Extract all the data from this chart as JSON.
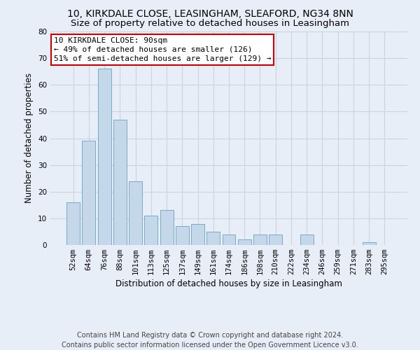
{
  "title": "10, KIRKDALE CLOSE, LEASINGHAM, SLEAFORD, NG34 8NN",
  "subtitle": "Size of property relative to detached houses in Leasingham",
  "xlabel": "Distribution of detached houses by size in Leasingham",
  "ylabel": "Number of detached properties",
  "categories": [
    "52sqm",
    "64sqm",
    "76sqm",
    "88sqm",
    "101sqm",
    "113sqm",
    "125sqm",
    "137sqm",
    "149sqm",
    "161sqm",
    "174sqm",
    "186sqm",
    "198sqm",
    "210sqm",
    "222sqm",
    "234sqm",
    "246sqm",
    "259sqm",
    "271sqm",
    "283sqm",
    "295sqm"
  ],
  "values": [
    16,
    39,
    66,
    47,
    24,
    11,
    13,
    7,
    8,
    5,
    4,
    2,
    4,
    4,
    0,
    4,
    0,
    0,
    0,
    1,
    0
  ],
  "bar_color": "#c5d8ea",
  "bar_edgecolor": "#7aaac8",
  "annotation_text_line1": "10 KIRKDALE CLOSE: 90sqm",
  "annotation_text_line2": "← 49% of detached houses are smaller (126)",
  "annotation_text_line3": "51% of semi-detached houses are larger (129) →",
  "annotation_box_facecolor": "#ffffff",
  "annotation_box_edgecolor": "#cc0000",
  "ylim": [
    0,
    80
  ],
  "yticks": [
    0,
    10,
    20,
    30,
    40,
    50,
    60,
    70,
    80
  ],
  "grid_color": "#c8d4e4",
  "background_color": "#e8eef8",
  "footer_line1": "Contains HM Land Registry data © Crown copyright and database right 2024.",
  "footer_line2": "Contains public sector information licensed under the Open Government Licence v3.0.",
  "title_fontsize": 10,
  "subtitle_fontsize": 9.5,
  "xlabel_fontsize": 8.5,
  "ylabel_fontsize": 8.5,
  "tick_fontsize": 7.5,
  "annotation_fontsize": 8,
  "footer_fontsize": 7
}
